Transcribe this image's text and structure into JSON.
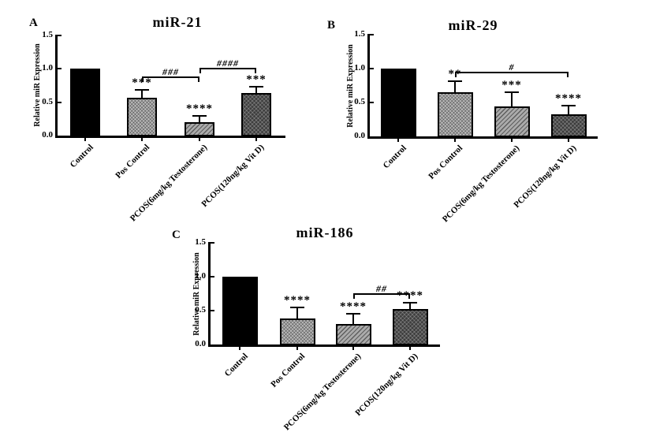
{
  "figure": {
    "background": "#ffffff",
    "axis_color": "#000000",
    "y_axis_label": "Relative miR Expression"
  },
  "chart_data": [
    {
      "type": "bar",
      "panel": "A",
      "title": "miR-21",
      "ylabel": "Relative miR Expression",
      "xlabel": "",
      "ylim": [
        0,
        1.5
      ],
      "yticks": [
        0.0,
        0.5,
        1.0,
        1.5
      ],
      "ytick_labels": [
        "0.0",
        "0.5",
        "1.0",
        "1.5"
      ],
      "grid": false,
      "legend": "none",
      "categories": [
        "Control",
        "Pos Control",
        "PCOS(6mg/kg Testosterone)",
        "PCOS(120ng/kg Vit D)"
      ],
      "values": [
        1.0,
        0.57,
        0.2,
        0.63
      ],
      "errors": [
        0,
        0.12,
        0.11,
        0.11
      ],
      "significance": [
        "",
        "***",
        "****",
        "***"
      ],
      "comparisons": [
        {
          "from": 1,
          "to": 2,
          "label": "###",
          "height": 0.88
        },
        {
          "from": 2,
          "to": 3,
          "label": "####",
          "height": 1.01
        }
      ],
      "bar_styles": [
        "solid-black",
        "light-checker",
        "gray-diagonal",
        "dark-crosshatch"
      ],
      "bar_colors": [
        "#000000",
        "#bcbcbc",
        "#ababab",
        "#3d3d3d"
      ]
    },
    {
      "type": "bar",
      "panel": "B",
      "title": "miR-29",
      "ylabel": "Relative miR Expression",
      "xlabel": "",
      "ylim": [
        0,
        1.5
      ],
      "yticks": [
        0.0,
        0.5,
        1.0,
        1.5
      ],
      "ytick_labels": [
        "0.0",
        "0.5",
        "1.0",
        "1.5"
      ],
      "grid": false,
      "legend": "none",
      "categories": [
        "Control",
        "Pos Control",
        "PCOS(6mg/kg Testosterone)",
        "PCOS(120ng/kg Vit D)"
      ],
      "values": [
        1.0,
        0.65,
        0.44,
        0.33
      ],
      "errors": [
        0,
        0.17,
        0.22,
        0.14
      ],
      "significance": [
        "",
        "**",
        "***",
        "****"
      ],
      "comparisons": [
        {
          "from": 1,
          "to": 3,
          "label": "#",
          "height": 0.95
        }
      ],
      "bar_styles": [
        "solid-black",
        "light-checker",
        "gray-diagonal",
        "dark-crosshatch"
      ],
      "bar_colors": [
        "#000000",
        "#bcbcbc",
        "#ababab",
        "#3d3d3d"
      ]
    },
    {
      "type": "bar",
      "panel": "C",
      "title": "miR-186",
      "ylabel": "Relative miR Expression",
      "xlabel": "",
      "ylim": [
        0,
        1.5
      ],
      "yticks": [
        0.0,
        0.5,
        1.0,
        1.5
      ],
      "ytick_labels": [
        "0.0",
        "0.5",
        "1.0",
        "1.5"
      ],
      "grid": false,
      "legend": "none",
      "categories": [
        "Control",
        "Pos Control",
        "PCOS(6mg/kg Testosterone)",
        "PCOS(120ng/kg Vit D)"
      ],
      "values": [
        1.0,
        0.38,
        0.3,
        0.52
      ],
      "errors": [
        0,
        0.18,
        0.16,
        0.11
      ],
      "significance": [
        "",
        "****",
        "****",
        "****"
      ],
      "comparisons": [
        {
          "from": 2,
          "to": 3,
          "label": "##",
          "height": 0.76
        }
      ],
      "bar_styles": [
        "solid-black",
        "light-checker",
        "gray-diagonal",
        "dark-crosshatch"
      ],
      "bar_colors": [
        "#000000",
        "#bcbcbc",
        "#ababab",
        "#3d3d3d"
      ]
    }
  ]
}
